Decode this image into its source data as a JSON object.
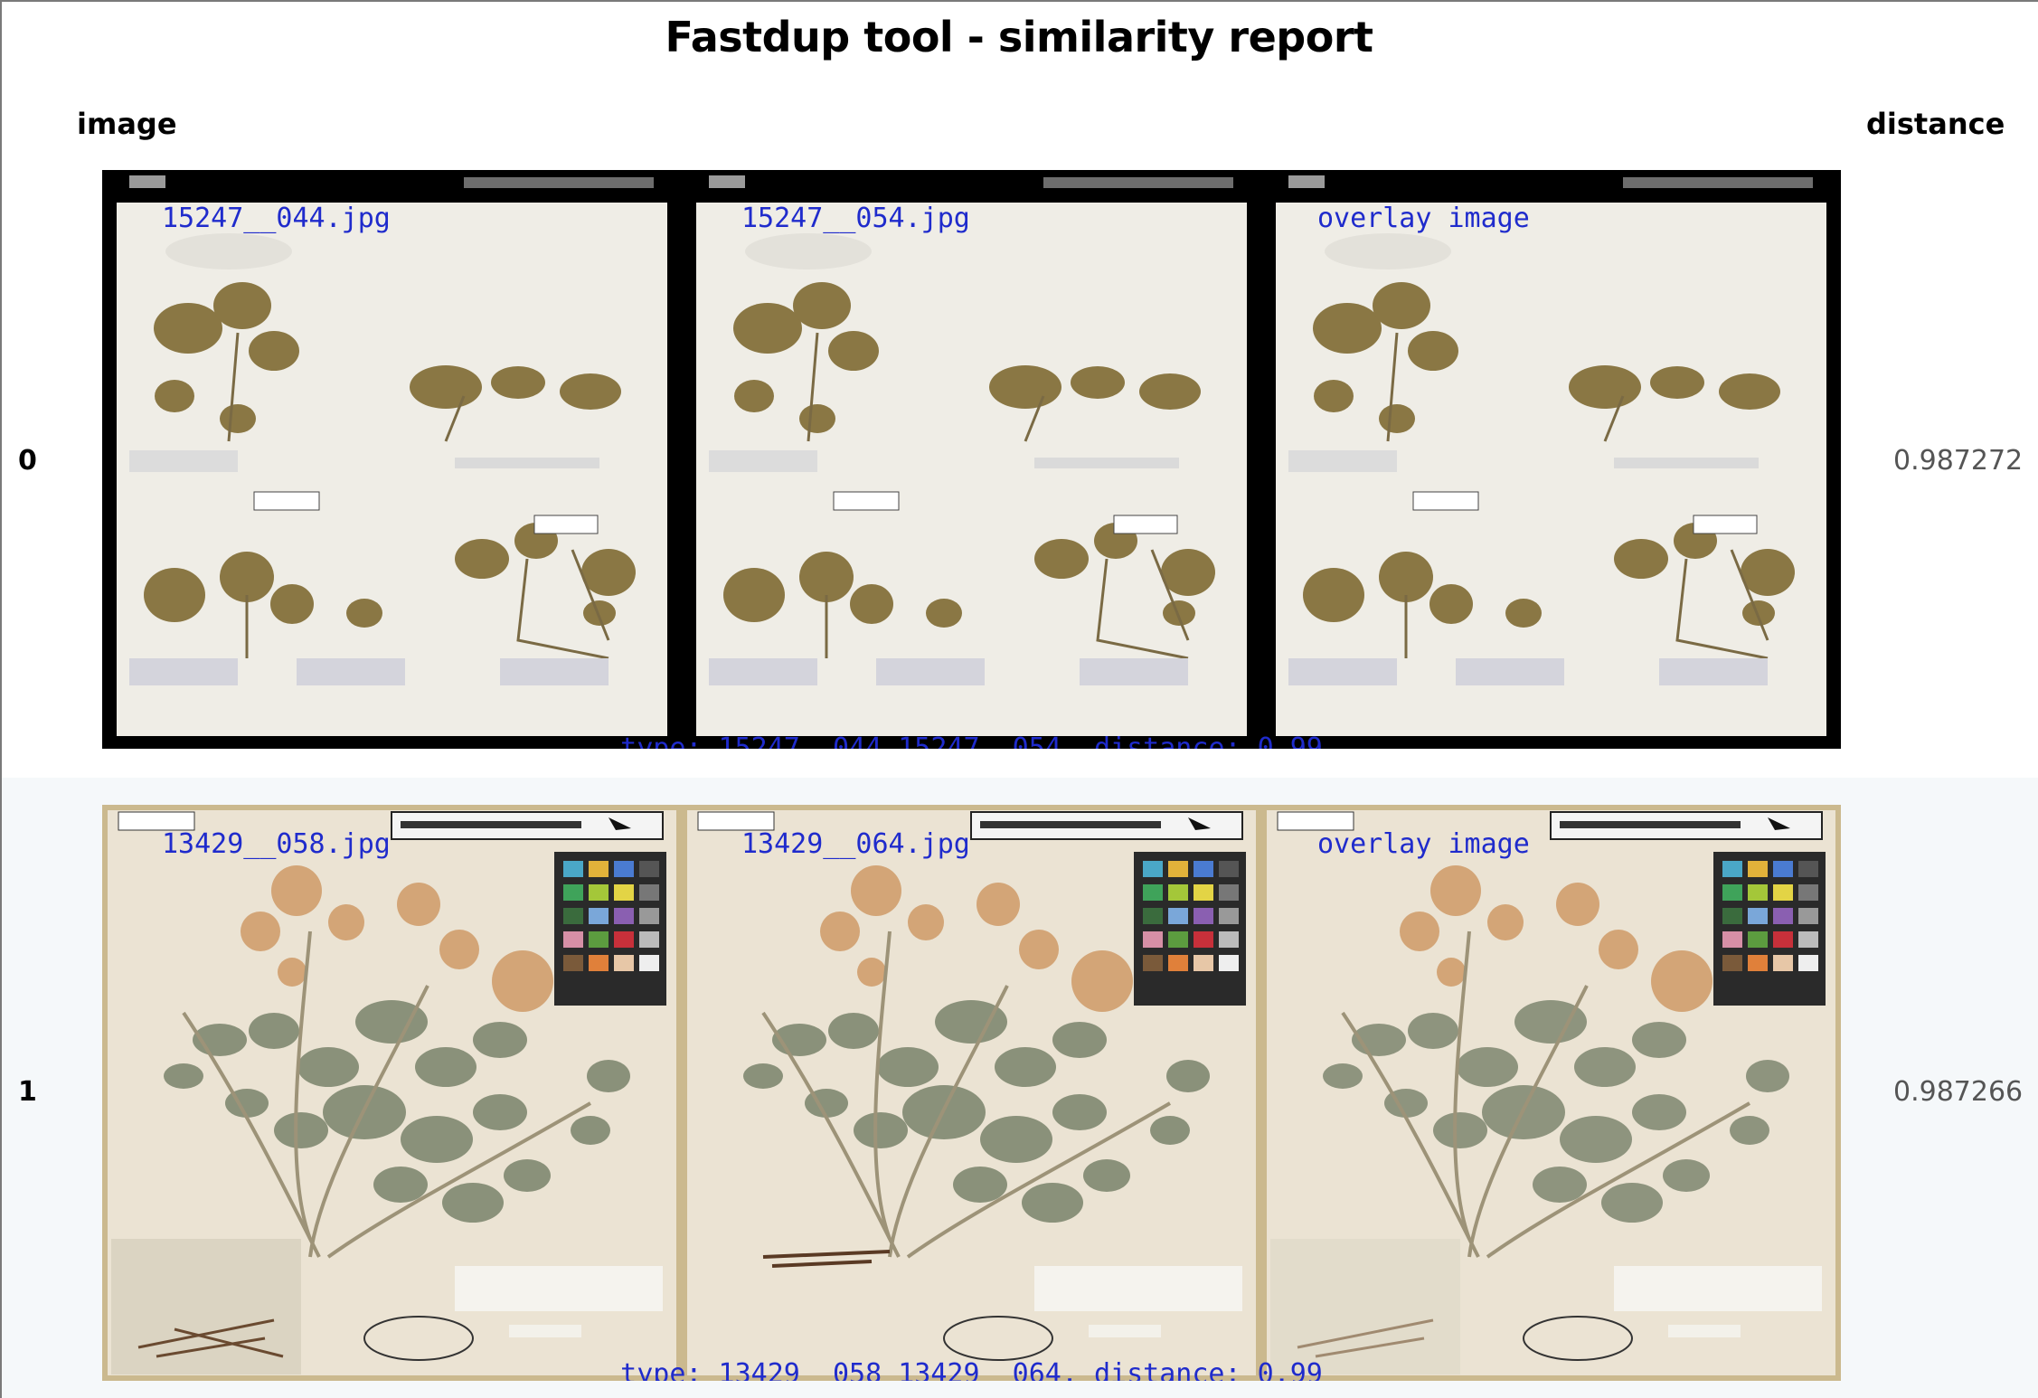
{
  "page": {
    "title": "Fastdup tool - similarity report",
    "columns": {
      "image": "image",
      "distance": "distance"
    }
  },
  "rows": [
    {
      "index": "0",
      "distance": "0.987272",
      "panels": [
        {
          "label": "15247__044.jpg"
        },
        {
          "label": "15247__054.jpg"
        },
        {
          "label": "overlay image"
        }
      ],
      "footer": "type: 15247__044_15247__054, distance: 0.99"
    },
    {
      "index": "1",
      "distance": "0.987266",
      "panels": [
        {
          "label": "13429__058.jpg"
        },
        {
          "label": "13429__064.jpg"
        },
        {
          "label": "overlay image"
        }
      ],
      "footer": "type: 13429__058_13429__064, distance: 0.99"
    }
  ],
  "colors": {
    "label_blue": "#1f2bcc",
    "distance_gray": "#555555",
    "row_alt_bg": "#f5f8fa"
  }
}
